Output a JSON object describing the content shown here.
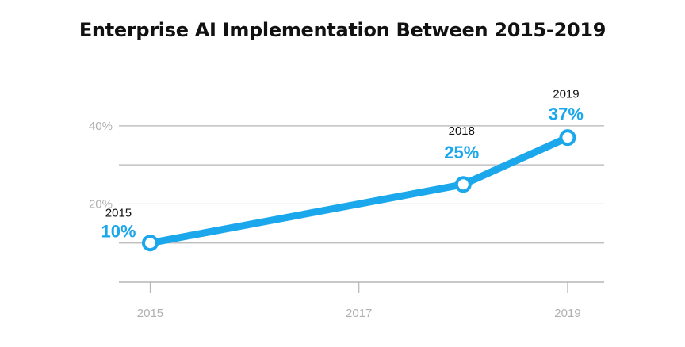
{
  "chart_data": {
    "type": "line",
    "title": "Enterprise AI Implementation Between 2015-2019",
    "xlabel": "",
    "ylabel": "",
    "x": [
      2015,
      2018,
      2019
    ],
    "xlim": [
      2014.7,
      2019.35
    ],
    "x_ticks": [
      2015,
      2017,
      2019
    ],
    "x_tick_labels": [
      "2015",
      "2017",
      "2019"
    ],
    "ylim": [
      0,
      42
    ],
    "y_gridlines": [
      0,
      10,
      20,
      30,
      40
    ],
    "y_tick_values": [
      20,
      40
    ],
    "y_tick_labels": [
      "20%",
      "40%"
    ],
    "grid": true,
    "legend": "none",
    "series": [
      {
        "values": [
          10,
          25,
          37
        ],
        "color": "#1aa7ec"
      }
    ],
    "annotations": [
      {
        "x": 2015,
        "y": 10,
        "year_label": "2015",
        "value_label": "10%"
      },
      {
        "x": 2018,
        "y": 25,
        "year_label": "2018",
        "value_label": "25%"
      },
      {
        "x": 2019,
        "y": 37,
        "year_label": "2019",
        "value_label": "37%"
      }
    ],
    "colors": {
      "line": "#1aa7ec",
      "value_label": "#1aa7ec",
      "year_label": "#111111",
      "grid": "#b5b5b5",
      "tick_label": "#b0b0b0"
    }
  }
}
